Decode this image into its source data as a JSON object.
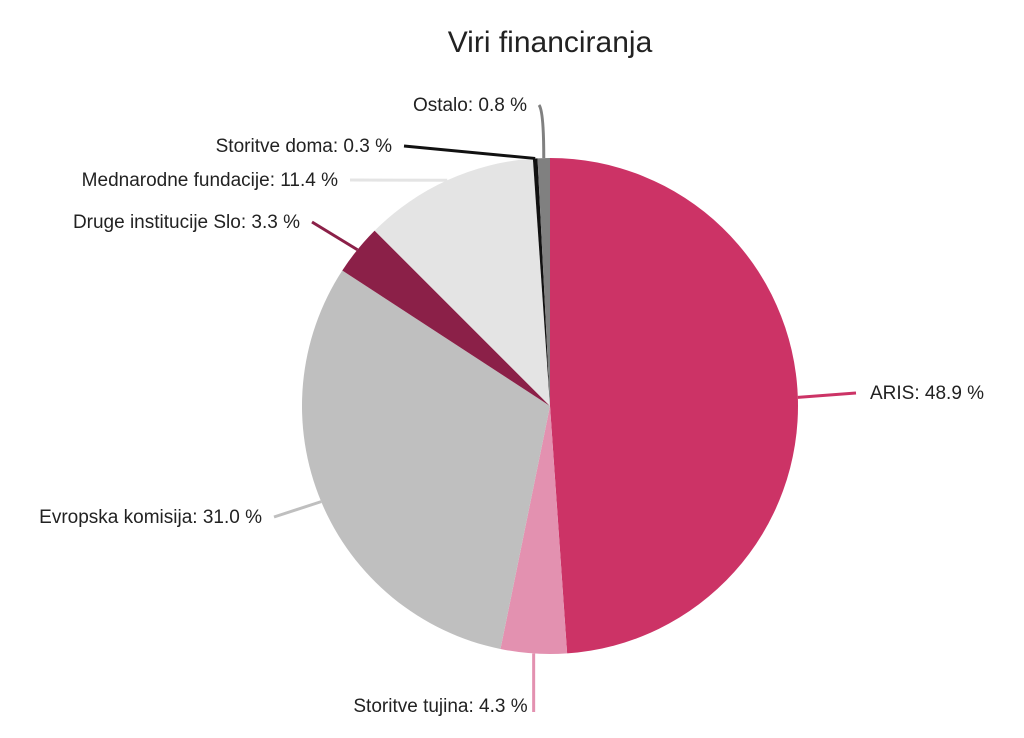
{
  "chart_data": {
    "type": "pie",
    "title": "Viri financiranja",
    "slices": [
      {
        "label": "ARIS",
        "value": 48.9,
        "text": "ARIS: 48.9 %",
        "color": "#cc3366"
      },
      {
        "label": "Storitve tujina",
        "value": 4.3,
        "text": "Storitve tujina: 4.3 %",
        "color": "#e391b0"
      },
      {
        "label": "Evropska komisija",
        "value": 31.0,
        "text": "Evropska komisija: 31.0 %",
        "color": "#bfbfbf"
      },
      {
        "label": "Druge institucije Slo",
        "value": 3.3,
        "text": "Druge institucije Slo: 3.3 %",
        "color": "#8b2048"
      },
      {
        "label": "Mednarodne fundacije",
        "value": 11.4,
        "text": "Mednarodne fundacije: 11.4 %",
        "color": "#e4e4e4"
      },
      {
        "label": "Storitve doma",
        "value": 0.3,
        "text": "Storitve doma: 0.3 %",
        "color": "#111111"
      },
      {
        "label": "Ostalo",
        "value": 0.8,
        "text": "Ostalo: 0.8 %",
        "color": "#808080"
      }
    ]
  }
}
